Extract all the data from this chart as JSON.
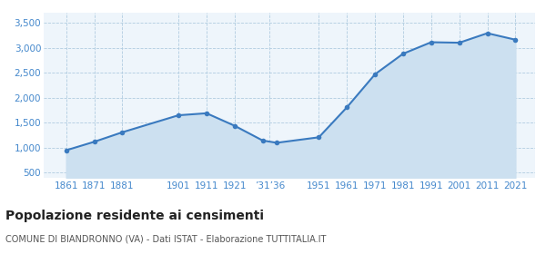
{
  "years": [
    1861,
    1871,
    1881,
    1901,
    1911,
    1921,
    1931,
    1936,
    1951,
    1961,
    1971,
    1981,
    1991,
    2001,
    2011,
    2021
  ],
  "population": [
    950,
    1120,
    1310,
    1650,
    1690,
    1440,
    1145,
    1100,
    1210,
    1810,
    2470,
    2880,
    3110,
    3100,
    3290,
    3160
  ],
  "line_color": "#3a7abf",
  "fill_color": "#cce0f0",
  "marker_color": "#3a7abf",
  "bg_color": "#eef5fb",
  "grid_color": "#b0cce0",
  "title": "Popolazione residente ai censimenti",
  "subtitle": "COMUNE DI BIANDRONNO (VA) - Dati ISTAT - Elaborazione TUTTITALIA.IT",
  "ylim": [
    400,
    3700
  ],
  "yticks": [
    500,
    1000,
    1500,
    2000,
    2500,
    3000,
    3500
  ],
  "title_fontsize": 10,
  "subtitle_fontsize": 7,
  "tick_color": "#4488cc",
  "tick_fontsize": 7.5
}
